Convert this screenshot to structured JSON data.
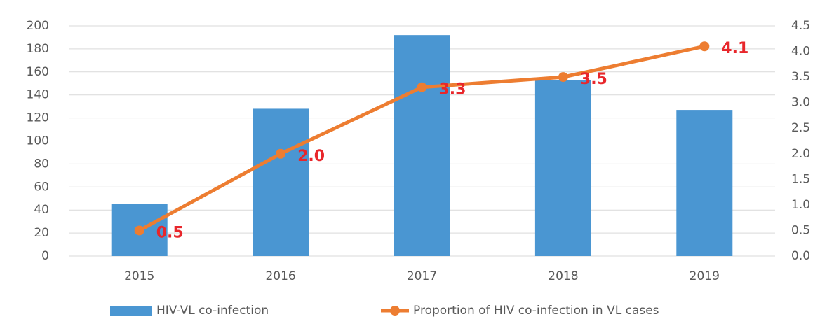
{
  "chart_data": {
    "type": "bar-line",
    "categories": [
      "2015",
      "2016",
      "2017",
      "2018",
      "2019"
    ],
    "series": [
      {
        "name": "HIV-VL co-infection",
        "color": "#4a96d2",
        "type": "bar",
        "values": [
          45,
          128,
          192,
          153,
          127
        ]
      },
      {
        "name": "Proportion of HIV co-infection in VL cases",
        "color": "#ed7d31",
        "type": "line",
        "axis": "y2",
        "values": [
          0.5,
          2.0,
          3.3,
          3.5,
          4.1
        ],
        "value_labels": [
          "0.5",
          "2.0",
          "3.3",
          "3.5",
          "4.1"
        ],
        "label_color": "#e8262b"
      }
    ],
    "ylim": [
      0,
      200
    ],
    "yticks": [
      0,
      20,
      40,
      60,
      80,
      100,
      120,
      140,
      160,
      180,
      200
    ],
    "y2lim": [
      0,
      4.5
    ],
    "y2ticks": [
      {
        "value": 0,
        "label": "0.0"
      },
      0.5,
      {
        "value": 1,
        "label": "1.0"
      },
      1.5,
      {
        "value": 2,
        "label": "2.0"
      },
      2.5,
      {
        "value": 3,
        "label": "3.0"
      },
      3.5,
      {
        "value": 4,
        "label": "4.0"
      },
      4.5
    ],
    "grid": true,
    "legend": "bottom"
  }
}
